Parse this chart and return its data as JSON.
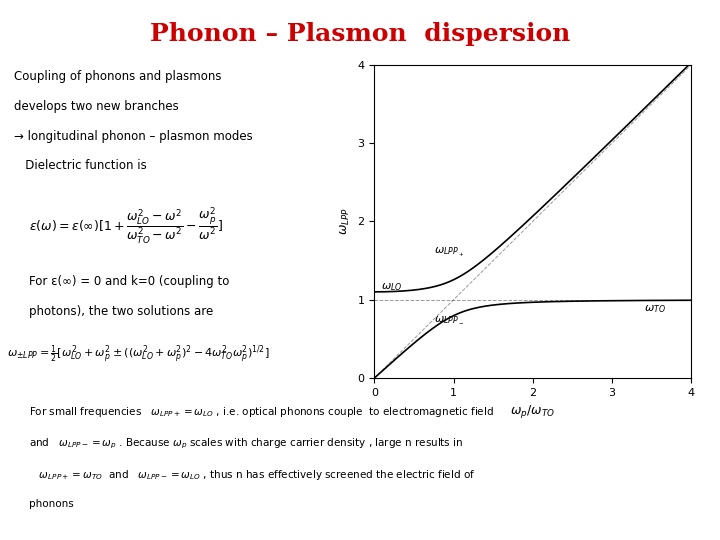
{
  "title": "Phonon – Plasmon  dispersion",
  "title_color": "#cc0000",
  "bg_color": "#ffffff",
  "omega_LO": 1.1,
  "omega_TO": 1.0,
  "omega_p": 1.0,
  "x_label": "$\\omega_p / \\omega_{TO}$",
  "y_label": "$\\omega_{LPP}$",
  "xlim": [
    0,
    4
  ],
  "ylim": [
    0,
    4
  ],
  "xticks": [
    0,
    1,
    2,
    3,
    4
  ],
  "yticks": [
    0,
    1,
    2,
    3,
    4
  ],
  "line_color": "#000000",
  "text_lines": [
    "Coupling of phonons and plasmons",
    "develops two new branches",
    "→ longitudinal phonon – plasmon modes",
    "   Dielectric function is"
  ],
  "text2_lines": [
    "For ε(∞) = 0 and k=0 (coupling to",
    "photons), the two solutions are"
  ],
  "text3_lines": [
    "For small frequencies   $\\omega_{LPP+} = \\omega_{LO}$ , i.e. optical phonons couple  to electromagnetic field",
    "and   $\\omega_{LPP-} = \\omega_p$ . Because $\\omega_p$ scales with charge carrier density , large n results in",
    "   $\\omega_{LPP+} = \\omega_{TO}$  and   $\\omega_{LPP-} = \\omega_{LO}$ , thus n has effectively screened the electric field of",
    "phonons"
  ],
  "formula1": "$\\varepsilon(\\omega) = \\varepsilon(\\infty)[1 + \\dfrac{\\omega_{LO}^2 - \\omega^2}{\\omega_{TO}^2 - \\omega^2} - \\dfrac{\\omega_p^2}{\\omega^2}]$",
  "formula2": "$\\omega_{\\pm LPP} = \\frac{1}{2}[\\omega_{LO}^2 + \\omega_p^2 \\pm ((\\omega_{LO}^2 + \\omega_p^2)^2 - 4\\omega_{TO}^2\\omega_p^2)^{1/2}]$"
}
